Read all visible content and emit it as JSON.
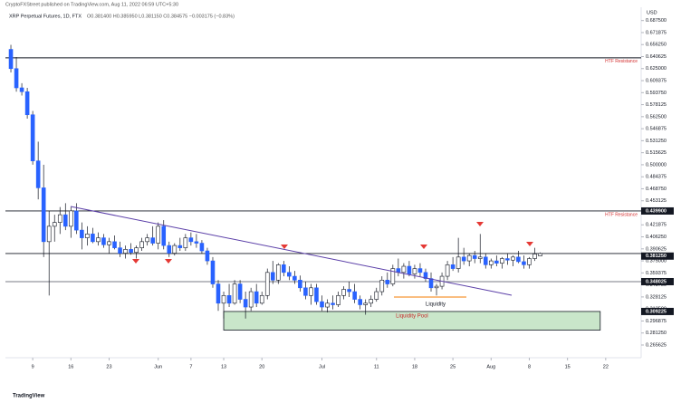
{
  "chart_data": {
    "type": "candlestick",
    "publisher": "CryptoFXStreet published on TradingView.com, Aug 11, 2022 06:59 UTC+5:30",
    "symbol": "XRP Perpetual Futures, 1D, FTX",
    "legend_values": "O0.381400 H0.385950 L0.381150 C0.384575 −0.003175 (−0.83%)",
    "currency": "USD",
    "footer": "TradingView",
    "up_color": "#ffffff",
    "down_color": "#2962ff",
    "border_color": "#131722",
    "xlim": [
      -5,
      111.5
    ],
    "xticks": [
      {
        "value": 0,
        "label": "9"
      },
      {
        "value": 7,
        "label": "16"
      },
      {
        "value": 14,
        "label": "23"
      },
      {
        "value": 23,
        "label": "Jun"
      },
      {
        "value": 29,
        "label": "7"
      },
      {
        "value": 35,
        "label": "13"
      },
      {
        "value": 42,
        "label": "20"
      },
      {
        "value": 53,
        "label": "Jul"
      },
      {
        "value": 63,
        "label": "11"
      },
      {
        "value": 70,
        "label": "18"
      },
      {
        "value": 77,
        "label": "25"
      },
      {
        "value": 84,
        "label": "Aug"
      },
      {
        "value": 91,
        "label": "8"
      },
      {
        "value": 98,
        "label": "15"
      },
      {
        "value": 105,
        "label": "22"
      }
    ],
    "ylim": [
      0.2491,
      0.7048
    ],
    "yticks": [
      {
        "value": 0.6875,
        "label": "0.687500"
      },
      0.671875,
      {
        "value": 0.65625,
        "label": "0.656250"
      },
      0.640625,
      {
        "value": 0.625,
        "label": "0.625000"
      },
      0.609375,
      {
        "value": 0.59375,
        "label": "0.593750"
      },
      0.578125,
      {
        "value": 0.5625,
        "label": "0.562500"
      },
      0.546875,
      {
        "value": 0.53125,
        "label": "0.531250"
      },
      0.515625,
      {
        "value": 0.5,
        "label": "0.500000"
      },
      0.484375,
      {
        "value": 0.46875,
        "label": "0.468750"
      },
      0.453125,
      {
        "value": 0.4375,
        "label": "0.437500"
      },
      0.421875,
      {
        "value": 0.40625,
        "label": "0.406250"
      },
      0.390625,
      {
        "value": 0.375,
        "label": "0.375000"
      },
      0.359375,
      {
        "value": 0.34375,
        "label": "0.343750"
      },
      0.328125,
      {
        "value": 0.3125,
        "label": "0.312500"
      },
      0.296875,
      {
        "value": 0.28125,
        "label": "0.281250"
      },
      0.265625
    ],
    "x": [
      -4,
      -3,
      -2,
      -1,
      0,
      1,
      2,
      3,
      4,
      5,
      6,
      7,
      8,
      9,
      10,
      11,
      12,
      13,
      14,
      15,
      16,
      17,
      18,
      19,
      20,
      21,
      22,
      23,
      24,
      25,
      26,
      27,
      28,
      29,
      30,
      31,
      32,
      33,
      34,
      35,
      36,
      37,
      38,
      39,
      40,
      41,
      42,
      43,
      44,
      45,
      46,
      47,
      48,
      49,
      50,
      51,
      52,
      53,
      54,
      55,
      56,
      57,
      58,
      59,
      60,
      61,
      62,
      63,
      64,
      65,
      66,
      67,
      68,
      69,
      70,
      71,
      72,
      73,
      74,
      75,
      76,
      77,
      78,
      79,
      80,
      81,
      82,
      83,
      84,
      85,
      86,
      87,
      88,
      89,
      90,
      91,
      92,
      93
    ],
    "ohlc": [
      [
        0.65,
        0.656,
        0.62,
        0.625
      ],
      [
        0.625,
        0.64,
        0.595,
        0.6
      ],
      [
        0.6,
        0.606,
        0.59,
        0.595
      ],
      [
        0.595,
        0.6,
        0.56,
        0.565
      ],
      [
        0.565,
        0.57,
        0.5,
        0.505
      ],
      [
        0.505,
        0.53,
        0.455,
        0.47
      ],
      [
        0.47,
        0.5,
        0.38,
        0.4
      ],
      [
        0.4,
        0.44,
        0.33,
        0.42
      ],
      [
        0.42,
        0.435,
        0.4,
        0.425
      ],
      [
        0.425,
        0.445,
        0.41,
        0.435
      ],
      [
        0.435,
        0.45,
        0.415,
        0.42
      ],
      [
        0.42,
        0.445,
        0.405,
        0.44
      ],
      [
        0.44,
        0.45,
        0.41,
        0.415
      ],
      [
        0.415,
        0.425,
        0.39,
        0.405
      ],
      [
        0.405,
        0.42,
        0.395,
        0.41
      ],
      [
        0.41,
        0.418,
        0.398,
        0.4
      ],
      [
        0.4,
        0.412,
        0.395,
        0.405
      ],
      [
        0.405,
        0.41,
        0.392,
        0.396
      ],
      [
        0.396,
        0.405,
        0.385,
        0.4
      ],
      [
        0.4,
        0.408,
        0.39,
        0.392
      ],
      [
        0.392,
        0.4,
        0.38,
        0.385
      ],
      [
        0.385,
        0.395,
        0.378,
        0.39
      ],
      [
        0.39,
        0.398,
        0.383,
        0.386
      ],
      [
        0.386,
        0.395,
        0.378,
        0.392
      ],
      [
        0.392,
        0.405,
        0.388,
        0.4
      ],
      [
        0.4,
        0.41,
        0.395,
        0.405
      ],
      [
        0.405,
        0.42,
        0.395,
        0.398
      ],
      [
        0.398,
        0.425,
        0.39,
        0.42
      ],
      [
        0.42,
        0.428,
        0.39,
        0.395
      ],
      [
        0.395,
        0.4,
        0.38,
        0.385
      ],
      [
        0.385,
        0.398,
        0.382,
        0.395
      ],
      [
        0.395,
        0.405,
        0.388,
        0.392
      ],
      [
        0.392,
        0.41,
        0.388,
        0.405
      ],
      [
        0.405,
        0.412,
        0.395,
        0.4
      ],
      [
        0.4,
        0.41,
        0.392,
        0.398
      ],
      [
        0.398,
        0.402,
        0.385,
        0.388
      ],
      [
        0.388,
        0.392,
        0.37,
        0.375
      ],
      [
        0.375,
        0.38,
        0.34,
        0.345
      ],
      [
        0.345,
        0.35,
        0.31,
        0.32
      ],
      [
        0.32,
        0.335,
        0.3,
        0.33
      ],
      [
        0.33,
        0.345,
        0.315,
        0.32
      ],
      [
        0.32,
        0.35,
        0.318,
        0.345
      ],
      [
        0.345,
        0.35,
        0.32,
        0.325
      ],
      [
        0.325,
        0.335,
        0.3,
        0.315
      ],
      [
        0.315,
        0.34,
        0.31,
        0.335
      ],
      [
        0.335,
        0.345,
        0.315,
        0.32
      ],
      [
        0.32,
        0.335,
        0.318,
        0.33
      ],
      [
        0.33,
        0.365,
        0.325,
        0.36
      ],
      [
        0.36,
        0.375,
        0.345,
        0.35
      ],
      [
        0.35,
        0.372,
        0.345,
        0.37
      ],
      [
        0.37,
        0.375,
        0.355,
        0.36
      ],
      [
        0.36,
        0.368,
        0.35,
        0.355
      ],
      [
        0.355,
        0.362,
        0.345,
        0.35
      ],
      [
        0.35,
        0.356,
        0.335,
        0.34
      ],
      [
        0.34,
        0.348,
        0.325,
        0.33
      ],
      [
        0.33,
        0.345,
        0.318,
        0.34
      ],
      [
        0.34,
        0.345,
        0.318,
        0.322
      ],
      [
        0.322,
        0.33,
        0.31,
        0.315
      ],
      [
        0.315,
        0.325,
        0.308,
        0.32
      ],
      [
        0.32,
        0.33,
        0.312,
        0.318
      ],
      [
        0.318,
        0.335,
        0.315,
        0.33
      ],
      [
        0.33,
        0.342,
        0.325,
        0.338
      ],
      [
        0.338,
        0.348,
        0.328,
        0.335
      ],
      [
        0.335,
        0.345,
        0.32,
        0.325
      ],
      [
        0.325,
        0.33,
        0.312,
        0.318
      ],
      [
        0.318,
        0.325,
        0.305,
        0.32
      ],
      [
        0.32,
        0.33,
        0.315,
        0.325
      ],
      [
        0.325,
        0.34,
        0.322,
        0.335
      ],
      [
        0.335,
        0.355,
        0.33,
        0.35
      ],
      [
        0.35,
        0.36,
        0.34,
        0.345
      ],
      [
        0.345,
        0.37,
        0.342,
        0.365
      ],
      [
        0.365,
        0.378,
        0.355,
        0.36
      ],
      [
        0.36,
        0.372,
        0.352,
        0.368
      ],
      [
        0.368,
        0.375,
        0.355,
        0.358
      ],
      [
        0.358,
        0.37,
        0.352,
        0.365
      ],
      [
        0.365,
        0.372,
        0.355,
        0.36
      ],
      [
        0.36,
        0.365,
        0.348,
        0.352
      ],
      [
        0.352,
        0.36,
        0.335,
        0.34
      ],
      [
        0.34,
        0.345,
        0.33,
        0.342
      ],
      [
        0.342,
        0.36,
        0.338,
        0.355
      ],
      [
        0.355,
        0.375,
        0.35,
        0.37
      ],
      [
        0.37,
        0.38,
        0.362,
        0.365
      ],
      [
        0.365,
        0.405,
        0.36,
        0.38
      ],
      [
        0.38,
        0.392,
        0.37,
        0.375
      ],
      [
        0.375,
        0.385,
        0.368,
        0.382
      ],
      [
        0.382,
        0.388,
        0.372,
        0.378
      ],
      [
        0.378,
        0.41,
        0.372,
        0.38
      ],
      [
        0.38,
        0.385,
        0.365,
        0.37
      ],
      [
        0.37,
        0.378,
        0.365,
        0.375
      ],
      [
        0.375,
        0.382,
        0.368,
        0.372
      ],
      [
        0.372,
        0.38,
        0.365,
        0.378
      ],
      [
        0.378,
        0.385,
        0.37,
        0.376
      ],
      [
        0.376,
        0.382,
        0.368,
        0.38
      ],
      [
        0.38,
        0.388,
        0.372,
        0.374
      ],
      [
        0.374,
        0.382,
        0.365,
        0.37
      ],
      [
        0.37,
        0.38,
        0.365,
        0.378
      ],
      [
        0.378,
        0.392,
        0.375,
        0.384
      ],
      [
        0.3814,
        0.38595,
        0.38115,
        0.384575
      ]
    ],
    "levels": [
      {
        "value": 0.639,
        "label": "HTF Resistance",
        "color": "#131722"
      },
      {
        "value": 0.4399,
        "label": "HTF Resistance",
        "color": "#131722"
      },
      {
        "value": 0.3846,
        "color": "#131722"
      },
      {
        "value": 0.348025,
        "color": "#787b86"
      }
    ],
    "price_labels": [
      {
        "value": 0.4399,
        "label": "0.439900"
      },
      {
        "value": 0.38125,
        "label": "0.381250"
      },
      {
        "value": 0.348025,
        "label": "0.348025"
      },
      {
        "value": 0.309225,
        "label": "0.309225"
      }
    ],
    "zone": {
      "label": "Liquidity Pool",
      "x": [
        35,
        104
      ],
      "y": [
        0.285,
        0.309225
      ],
      "color": "#a5d6a7"
    },
    "annotation": "Liquidity"
  }
}
